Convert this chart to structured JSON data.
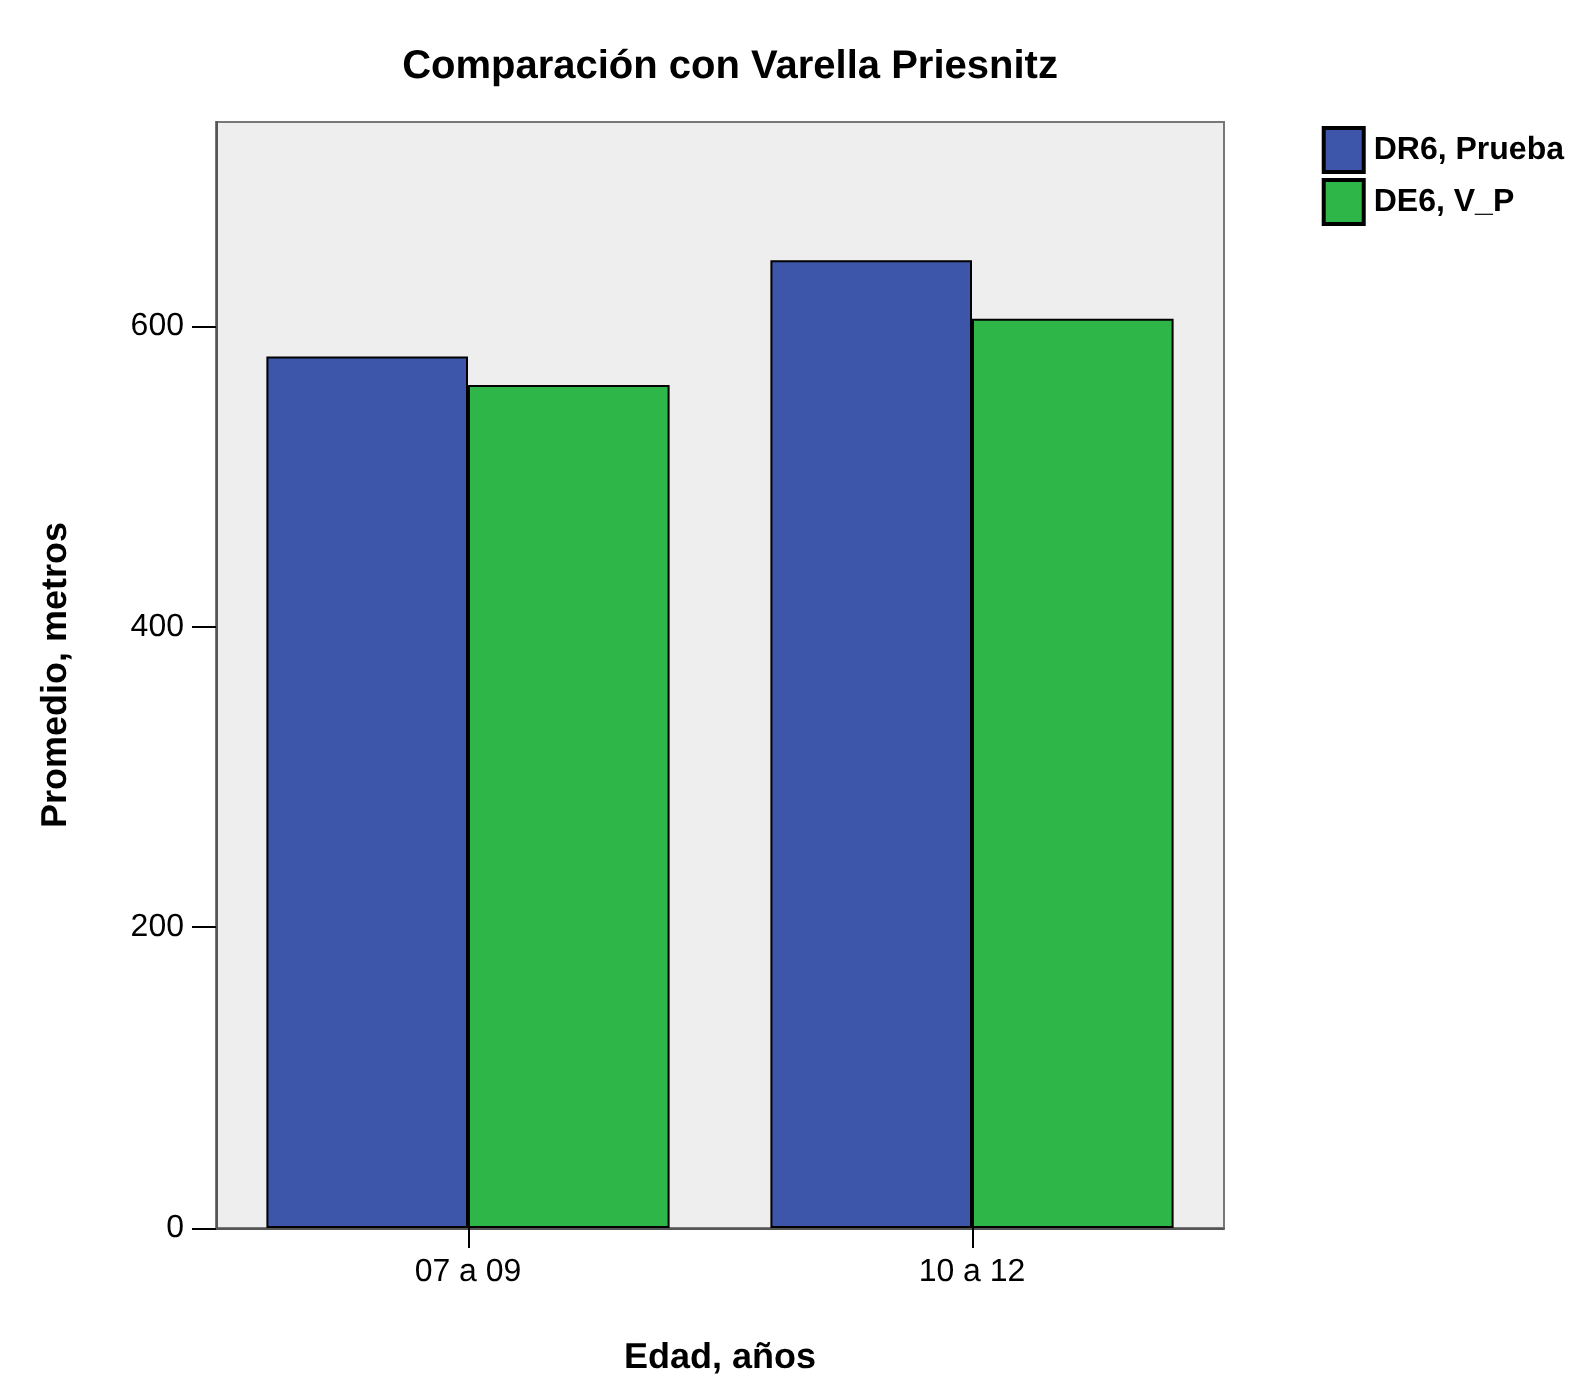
{
  "chart_data": {
    "type": "bar",
    "title": "Comparación con Varella Priesnitz",
    "xlabel": "Edad, años",
    "ylabel": "Promedio, metros",
    "categories": [
      "07 a 09",
      "10 a 12"
    ],
    "series": [
      {
        "name": "DR6, Prueba",
        "color": "#3d56aa",
        "values": [
          580,
          644
        ]
      },
      {
        "name": "DE6, V_P",
        "color": "#2eb748",
        "values": [
          561,
          605
        ]
      }
    ],
    "ylim": [
      0,
      736
    ],
    "yticks": [
      0,
      200,
      400,
      600
    ],
    "grid": false,
    "legend": "top right"
  }
}
